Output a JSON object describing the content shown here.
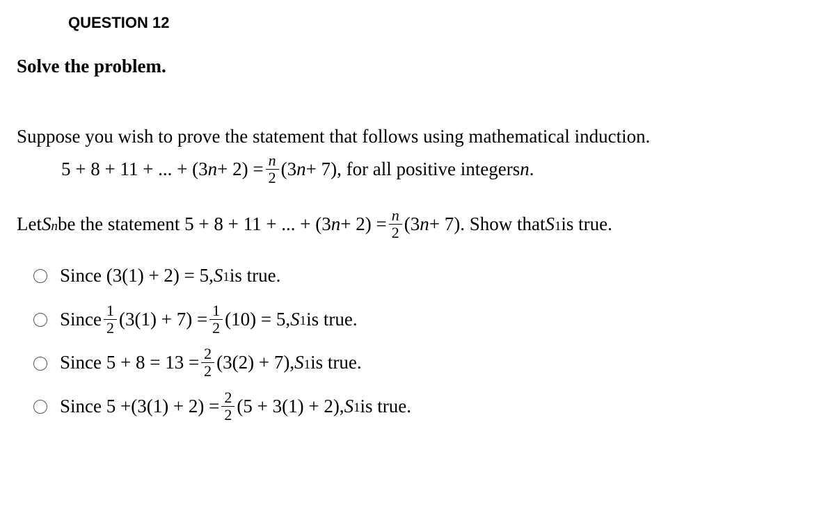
{
  "question_label": "QUESTION 12",
  "instruction": "Solve the problem.",
  "prove_intro": "Suppose you wish to prove the statement that follows using mathematical induction.",
  "series_lhs_a": "5 + 8 + 11 + ... + (3",
  "series_lhs_b": " + 2) = ",
  "series_frac_num": "n",
  "series_frac_den": "2",
  "series_rhs_a": "(3",
  "series_rhs_b": " + 7), for all positive integers ",
  "series_rhs_c": ".",
  "var_n": "n",
  "let_a": "Let ",
  "let_S": "S",
  "let_sub_n": "n",
  "let_b": " be the statement  5 + 8 + 11 + ... + (3",
  "let_c": " + 2) = ",
  "let_frac_num": "n",
  "let_frac_den": "2",
  "let_d": "(3",
  "let_e": " + 7). Show that ",
  "let_S1": "S",
  "let_sub_1": "1",
  "let_f": " is true.",
  "opt1_a": "Since (3(1) + 2) = 5, ",
  "opt_tail": " is true.",
  "opt2_a": "Since ",
  "opt2_fr1_num": "1",
  "opt2_fr1_den": "2",
  "opt2_b": "(3(1) + 7) = ",
  "opt2_fr2_num": "1",
  "opt2_fr2_den": "2",
  "opt2_c": "(10) = 5, ",
  "opt3_a": "Since 5 + 8 = 13 = ",
  "opt3_fr_num": "2",
  "opt3_fr_den": "2",
  "opt3_b": "(3(2) + 7), ",
  "opt4_a": "Since 5 +(3(1) + 2) = ",
  "opt4_fr_num": "2",
  "opt4_fr_den": "2",
  "opt4_b": "(5 + 3(1) + 2), "
}
